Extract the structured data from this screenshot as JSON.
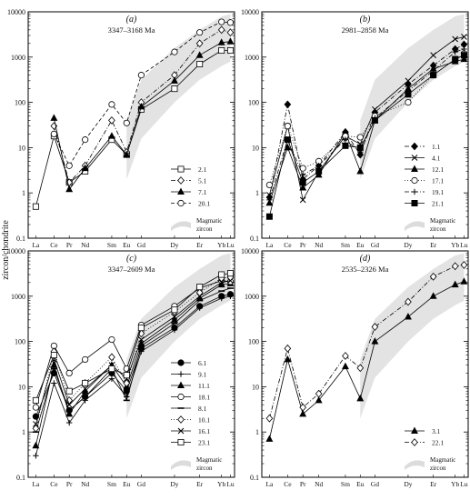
{
  "figure": {
    "ylabel": "zircon/chondrite",
    "y_ticks": [
      "0.1",
      "1",
      "10",
      "100",
      "1000",
      "10000"
    ],
    "x_categories": [
      "La",
      "Ce",
      "Pr",
      "Nd",
      "Sm",
      "Eu",
      "Gd",
      "Dy",
      "Er",
      "Yb",
      "Lu"
    ],
    "magmatic_label": [
      "Magmatic",
      "zircon"
    ]
  },
  "chart_data": [
    {
      "type": "line",
      "panel_label": "(a)",
      "age": "3347–3168 Ma",
      "yscale": "log",
      "ylim": [
        0.1,
        10000
      ],
      "categories": [
        "La",
        "Ce",
        "Pr",
        "Nd",
        "Sm",
        "Eu",
        "Gd",
        "Dy",
        "Er",
        "Yb",
        "Lu"
      ],
      "series": [
        {
          "name": "2.1",
          "marker": "open-square",
          "dash": "solid",
          "values": [
            0.5,
            18,
            1.7,
            3,
            15,
            7,
            70,
            200,
            700,
            1400,
            1400
          ]
        },
        {
          "name": "5.1",
          "marker": "open-diamond",
          "dash": "dashdot",
          "values": [
            null,
            30,
            1.7,
            4,
            40,
            8,
            100,
            400,
            2000,
            4000,
            3500
          ]
        },
        {
          "name": "7.1",
          "marker": "filled-triangle",
          "dash": "solid",
          "values": [
            null,
            45,
            1.2,
            3.5,
            18,
            7,
            80,
            300,
            1100,
            2100,
            2200
          ]
        },
        {
          "name": "20.1",
          "marker": "open-circle",
          "dash": "dashed",
          "values": [
            null,
            20,
            4,
            15,
            90,
            35,
            400,
            1300,
            3500,
            6000,
            5800
          ]
        }
      ]
    },
    {
      "type": "line",
      "panel_label": "(b)",
      "age": "2981–2858 Ma",
      "yscale": "log",
      "ylim": [
        0.1,
        10000
      ],
      "categories": [
        "La",
        "Ce",
        "Pr",
        "Nd",
        "Sm",
        "Eu",
        "Gd",
        "Dy",
        "Er",
        "Yb",
        "Lu"
      ],
      "series": [
        {
          "name": "1.1",
          "marker": "filled-diamond",
          "dash": "dashdot",
          "values": [
            0.8,
            90,
            2,
            4,
            22,
            7,
            60,
            250,
            650,
            1500,
            1900
          ]
        },
        {
          "name": "4.1",
          "marker": "cross",
          "dash": "solid",
          "values": [
            0.9,
            30,
            0.7,
            3,
            18,
            12,
            70,
            300,
            1100,
            2500,
            2800
          ]
        },
        {
          "name": "12.1",
          "marker": "filled-triangle",
          "dash": "solid",
          "values": [
            0.6,
            10,
            1.3,
            2.5,
            22,
            3,
            40,
            200,
            550,
            800,
            900
          ]
        },
        {
          "name": "17.1",
          "marker": "open-circle",
          "dash": "dotted",
          "values": [
            1.5,
            30,
            3.5,
            5,
            18,
            17,
            50,
            100,
            400,
            900,
            1200
          ]
        },
        {
          "name": "19.1",
          "marker": "plus",
          "dash": "dashdot",
          "values": [
            0.7,
            15,
            2.5,
            4,
            15,
            8,
            45,
            180,
            500,
            1300,
            1500
          ]
        },
        {
          "name": "21.1",
          "marker": "filled-square",
          "dash": "solid",
          "values": [
            0.3,
            15,
            1.7,
            3,
            11,
            10,
            40,
            150,
            400,
            900,
            1100
          ]
        }
      ]
    },
    {
      "type": "line",
      "panel_label": "(c)",
      "age": "3347–2609 Ma",
      "yscale": "log",
      "ylim": [
        0.1,
        10000
      ],
      "categories": [
        "La",
        "Ce",
        "Pr",
        "Nd",
        "Sm",
        "Eu",
        "Gd",
        "Dy",
        "Er",
        "Yb",
        "Lu"
      ],
      "series": [
        {
          "name": "6.1",
          "marker": "filled-circle",
          "dash": "solid",
          "values": [
            2.2,
            20,
            3,
            6,
            20,
            8,
            70,
            200,
            600,
            1000,
            1100
          ]
        },
        {
          "name": "9.1",
          "marker": "plus",
          "dash": "solid",
          "values": [
            0.3,
            12,
            1.6,
            5,
            15,
            6,
            60,
            180,
            550,
            900,
            1000
          ]
        },
        {
          "name": "11.1",
          "marker": "filled-triangle",
          "dash": "solid",
          "values": [
            0.5,
            30,
            2.5,
            8,
            30,
            10,
            90,
            300,
            900,
            1800,
            1900
          ]
        },
        {
          "name": "18.1",
          "marker": "open-circle",
          "dash": "solid",
          "values": [
            3.5,
            80,
            20,
            40,
            110,
            25,
            230,
            600,
            1500,
            2200,
            2100
          ]
        },
        {
          "name": "8.1",
          "marker": "dash",
          "dash": "solid",
          "values": [
            1,
            25,
            3,
            6,
            25,
            5,
            80,
            250,
            800,
            1300,
            1500
          ]
        },
        {
          "name": "10.1",
          "marker": "open-diamond",
          "dash": "dotted",
          "values": [
            1.2,
            60,
            5,
            12,
            45,
            12,
            150,
            450,
            1200,
            2500,
            2600
          ]
        },
        {
          "name": "16.1",
          "marker": "cross",
          "dash": "solid",
          "values": [
            1.5,
            40,
            4,
            9,
            30,
            15,
            110,
            350,
            1000,
            2000,
            2200
          ]
        },
        {
          "name": "23.1",
          "marker": "open-square",
          "dash": "solid",
          "values": [
            5,
            50,
            8,
            12,
            25,
            18,
            200,
            500,
            1600,
            3000,
            3200
          ]
        }
      ]
    },
    {
      "type": "line",
      "panel_label": "(d)",
      "age": "2535–2326 Ma",
      "yscale": "log",
      "ylim": [
        0.1,
        10000
      ],
      "categories": [
        "La",
        "Ce",
        "Pr",
        "Nd",
        "Sm",
        "Eu",
        "Gd",
        "Dy",
        "Er",
        "Yb",
        "Lu"
      ],
      "series": [
        {
          "name": "3.1",
          "marker": "filled-triangle",
          "dash": "solid",
          "values": [
            0.7,
            40,
            2.5,
            5,
            28,
            5.5,
            100,
            350,
            1000,
            1800,
            2100
          ]
        },
        {
          "name": "22.1",
          "marker": "open-diamond",
          "dash": "dashdot",
          "values": [
            2,
            70,
            3.5,
            7,
            48,
            26,
            210,
            750,
            2700,
            4600,
            4900
          ]
        }
      ]
    }
  ]
}
